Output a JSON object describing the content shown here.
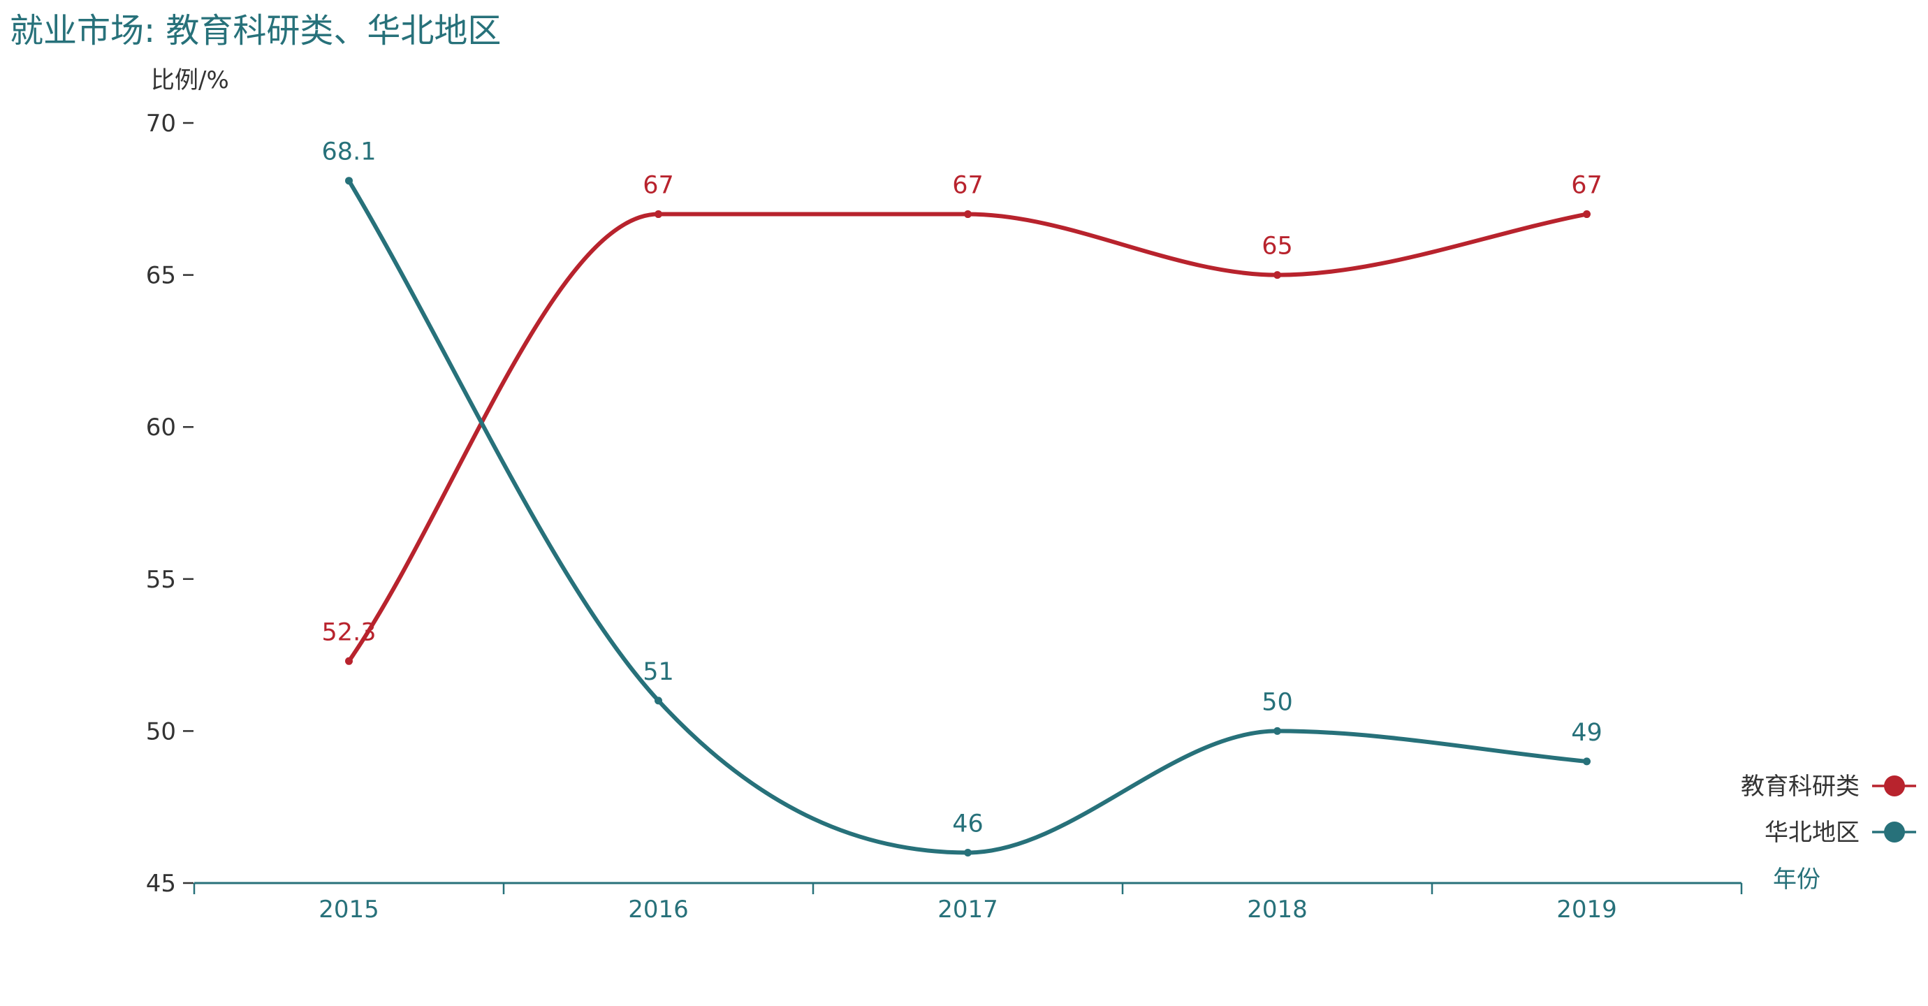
{
  "chart_data": {
    "type": "line",
    "title": "就业市场: 教育科研类、华北地区",
    "xlabel": "年份",
    "ylabel": "比例/%",
    "categories": [
      "2015",
      "2016",
      "2017",
      "2018",
      "2019"
    ],
    "ylim": [
      45,
      70
    ],
    "yticks": [
      45,
      50,
      55,
      60,
      65,
      70
    ],
    "grid": false,
    "smooth": true,
    "legend_position": "bottom-right",
    "series": [
      {
        "name": "教育科研类",
        "color": "#b8232d",
        "values": [
          52.3,
          67,
          67,
          65,
          67
        ],
        "labels": [
          "52.3",
          "67",
          "67",
          "65",
          "67"
        ]
      },
      {
        "name": "华北地区",
        "color": "#27717a",
        "values": [
          68.1,
          51,
          46,
          50,
          49
        ],
        "labels": [
          "68.1",
          "51",
          "46",
          "50",
          "49"
        ]
      }
    ],
    "colors": {
      "title": "#27717a",
      "x_axis": "#27717a",
      "y_axis": "#333333"
    }
  }
}
